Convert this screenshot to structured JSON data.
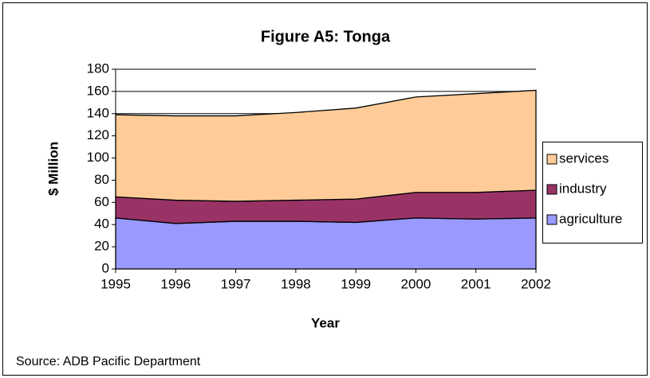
{
  "chart_data": {
    "type": "stacked_area",
    "title": "Figure A5: Tonga",
    "x_label": "Year",
    "y_label": "$ Million",
    "source": "Source: ADB Pacific Department",
    "x": [
      1995,
      1996,
      1997,
      1998,
      1999,
      2000,
      2001,
      2002
    ],
    "xlim": [
      1995,
      2002
    ],
    "xticks": [
      1995,
      1996,
      1997,
      1998,
      1999,
      2000,
      2001,
      2002
    ],
    "ylim": [
      0,
      180
    ],
    "yticks": [
      0,
      20,
      40,
      60,
      80,
      100,
      120,
      140,
      160,
      180
    ],
    "grid": true,
    "legend": "right",
    "series": [
      {
        "name": "agriculture",
        "color": "#9999ff",
        "values": [
          46,
          41,
          43,
          43,
          42,
          46,
          45,
          46
        ]
      },
      {
        "name": "industry",
        "color": "#993366",
        "values": [
          19,
          21,
          18,
          19,
          21,
          23,
          24,
          25
        ]
      },
      {
        "name": "services",
        "color": "#ffcc99",
        "values": [
          74,
          76,
          77,
          79,
          82,
          86,
          89,
          90
        ]
      }
    ]
  }
}
